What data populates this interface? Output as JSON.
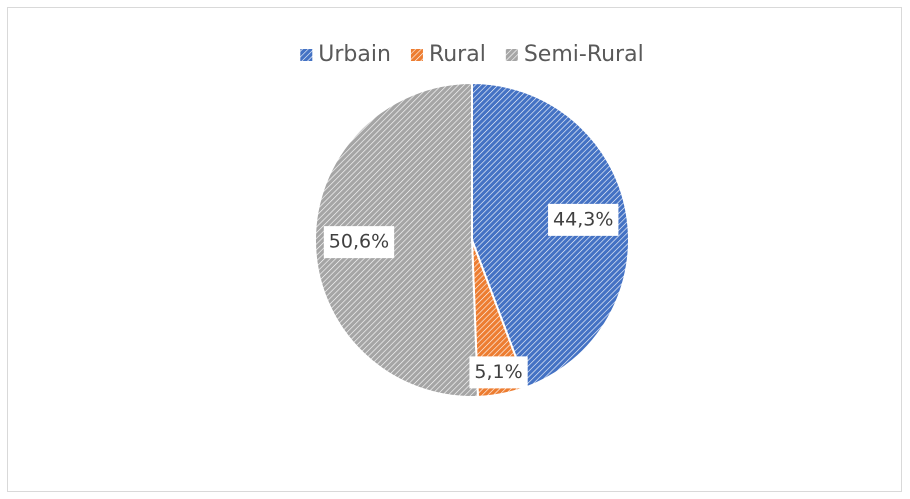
{
  "chart_data": {
    "type": "pie",
    "categories": [
      "Urbain",
      "Rural",
      "Semi-Rural"
    ],
    "values": [
      44.3,
      5.1,
      50.6
    ],
    "value_labels": [
      "44,3%",
      "5,1%",
      "50,6%"
    ],
    "colors": [
      "#4472c4",
      "#ed7d31",
      "#a5a5a5"
    ],
    "legend": "top"
  }
}
